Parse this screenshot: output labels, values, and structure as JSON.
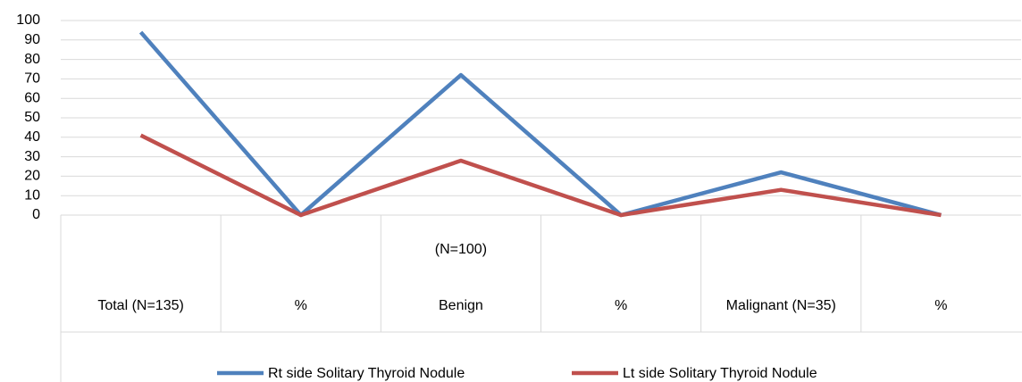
{
  "chart_data": {
    "type": "line",
    "categories": [
      "Total (N=135)",
      "%",
      "Benign",
      "%",
      "Malignant (N=35)",
      "%"
    ],
    "annotations": [
      {
        "text": "(N=100)",
        "category": 2
      }
    ],
    "series": [
      {
        "name": "Rt side Solitary Thyroid Nodule",
        "color": "#4f81bd",
        "values": [
          94,
          0,
          72,
          0,
          22,
          0
        ]
      },
      {
        "name": "Lt side Solitary Thyroid Nodule",
        "color": "#c0504d",
        "values": [
          41,
          0,
          28,
          0,
          13,
          0
        ]
      }
    ],
    "ylim": [
      0,
      100
    ],
    "yticks": [
      0,
      10,
      20,
      30,
      40,
      50,
      60,
      70,
      80,
      90,
      100
    ],
    "grid": true,
    "legend": "bottom"
  }
}
